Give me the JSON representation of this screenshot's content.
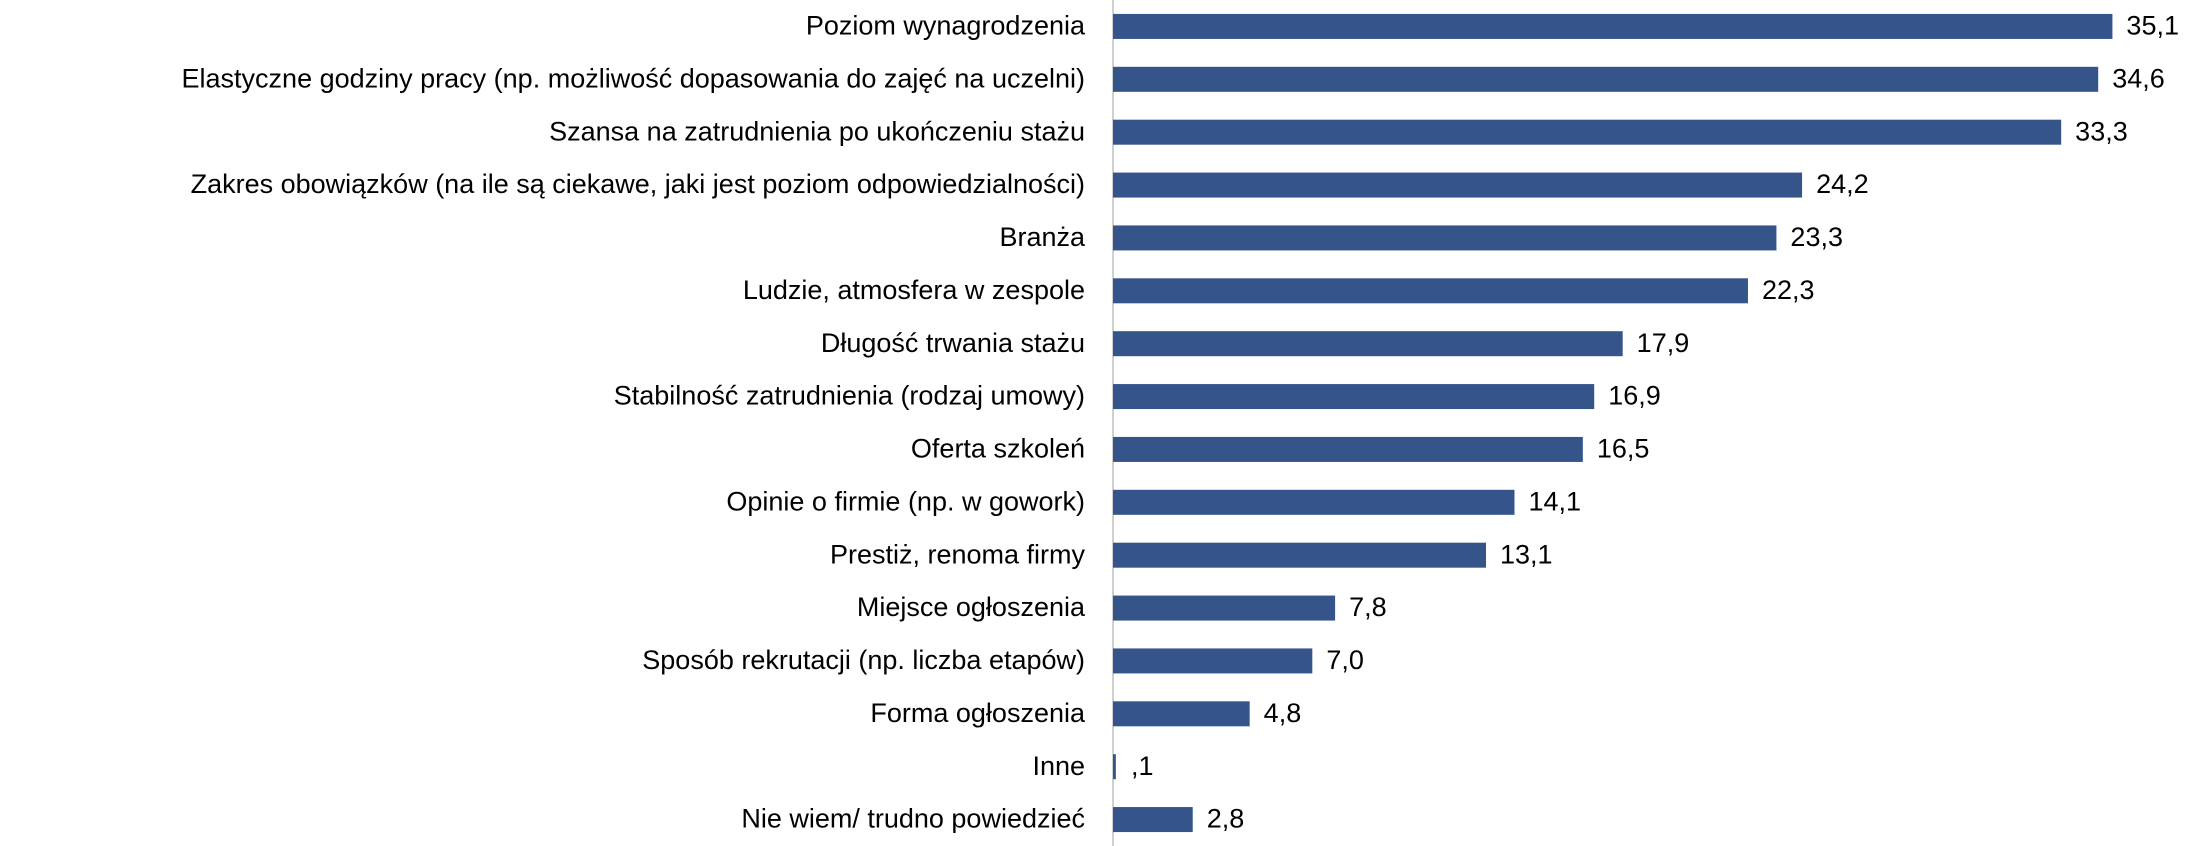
{
  "chart_data": {
    "type": "bar",
    "orientation": "horizontal",
    "categories": [
      "Poziom wynagrodzenia",
      "Elastyczne godziny pracy (np. możliwość dopasowania do zajęć na uczelni)",
      "Szansa na zatrudnienia po ukończeniu stażu",
      "Zakres obowiązków (na ile są ciekawe, jaki jest poziom odpowiedzialności)",
      "Branża",
      "Ludzie, atmosfera w zespole",
      "Długość trwania stażu",
      "Stabilność zatrudnienia (rodzaj umowy)",
      "Oferta szkoleń",
      "Opinie o firmie (np. w gowork)",
      "Prestiż, renoma firmy",
      "Miejsce ogłoszenia",
      "Sposób rekrutacji (np. liczba etapów)",
      "Forma ogłoszenia",
      "Inne",
      "Nie wiem/ trudno powiedzieć"
    ],
    "values": [
      35.1,
      34.6,
      33.3,
      24.2,
      23.3,
      22.3,
      17.9,
      16.9,
      16.5,
      14.1,
      13.1,
      7.8,
      7.0,
      4.8,
      0.1,
      2.8
    ],
    "value_labels": [
      "35,1",
      "34,6",
      "33,3",
      "24,2",
      "23,3",
      "22,3",
      "17,9",
      "16,9",
      "16,5",
      "14,1",
      "13,1",
      "7,8",
      "7,0",
      "4,8",
      ",1",
      "2,8"
    ],
    "color": "#34548a",
    "xlim": [
      0,
      38
    ]
  }
}
